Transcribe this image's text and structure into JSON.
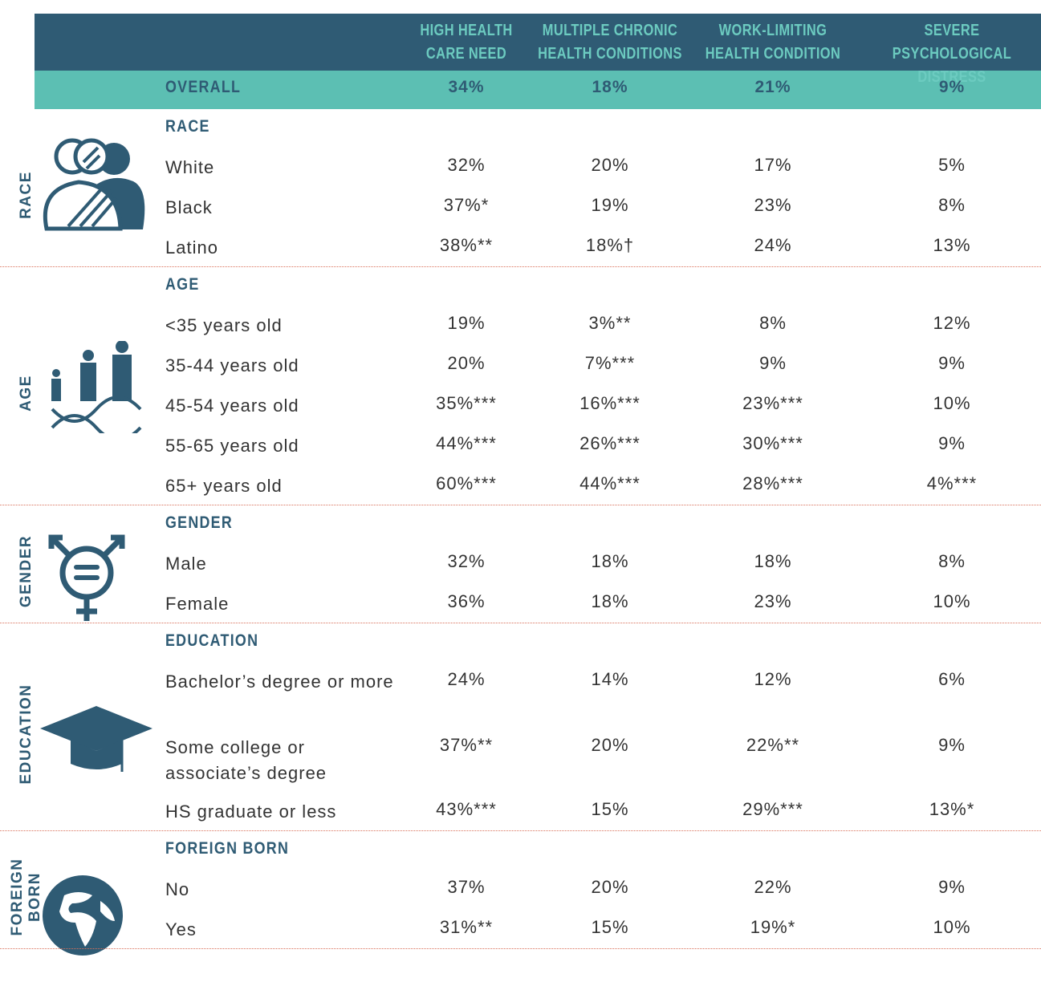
{
  "table": {
    "columns": [
      [
        "HIGH HEALTH",
        "CARE NEED"
      ],
      [
        "MULTIPLE CHRONIC",
        "HEALTH CONDITIONS"
      ],
      [
        "WORK-LIMITING",
        "HEALTH CONDITION"
      ],
      [
        "SEVERE PSYCHOLOGICAL",
        "DISTRESS"
      ]
    ],
    "overall": {
      "label": "OVERALL",
      "values": [
        "34%",
        "18%",
        "21%",
        "9%"
      ]
    },
    "sections": [
      {
        "side_label": [
          "RACE"
        ],
        "heading": "RACE",
        "rows": [
          {
            "label": "White",
            "values": [
              "32%",
              "20%",
              "17%",
              "5%"
            ]
          },
          {
            "label": "Black",
            "values": [
              "37%*",
              "19%",
              "23%",
              "8%"
            ]
          },
          {
            "label": "Latino",
            "values": [
              "38%**",
              "18%†",
              "24%",
              "13%"
            ]
          }
        ]
      },
      {
        "side_label": [
          "AGE"
        ],
        "heading": "AGE",
        "rows": [
          {
            "label": "<35 years old",
            "values": [
              "19%",
              "3%**",
              "8%",
              "12%"
            ]
          },
          {
            "label": "35-44 years old",
            "values": [
              "20%",
              "7%***",
              "9%",
              "9%"
            ]
          },
          {
            "label": "45-54 years old",
            "values": [
              "35%***",
              "16%***",
              "23%***",
              "10%"
            ]
          },
          {
            "label": "55-65 years old",
            "values": [
              "44%***",
              "26%***",
              "30%***",
              "9%"
            ]
          },
          {
            "label": "65+ years old",
            "values": [
              "60%***",
              "44%***",
              "28%***",
              "4%***"
            ]
          }
        ]
      },
      {
        "side_label": [
          "GENDER"
        ],
        "heading": "GENDER",
        "rows": [
          {
            "label": "Male",
            "values": [
              "32%",
              "18%",
              "18%",
              "8%"
            ]
          },
          {
            "label": "Female",
            "values": [
              "36%",
              "18%",
              "23%",
              "10%"
            ]
          }
        ]
      },
      {
        "side_label": [
          "EDUCATION"
        ],
        "heading": "EDUCATION",
        "rows": [
          {
            "label": "Bachelor’s degree or more",
            "values": [
              "24%",
              "14%",
              "12%",
              "6%"
            ]
          },
          {
            "label": "Some college or associate’s degree",
            "values": [
              "37%**",
              "20%",
              "22%**",
              "9%"
            ]
          },
          {
            "label": "HS graduate or less",
            "values": [
              "43%***",
              "15%",
              "29%***",
              "13%*"
            ]
          }
        ]
      },
      {
        "side_label": [
          "FOREIGN",
          "BORN"
        ],
        "heading": "FOREIGN BORN",
        "rows": [
          {
            "label": "No",
            "values": [
              "37%",
              "20%",
              "22%",
              "9%"
            ]
          },
          {
            "label": "Yes",
            "values": [
              "31%**",
              "15%",
              "19%*",
              "10%"
            ]
          }
        ]
      }
    ]
  }
}
